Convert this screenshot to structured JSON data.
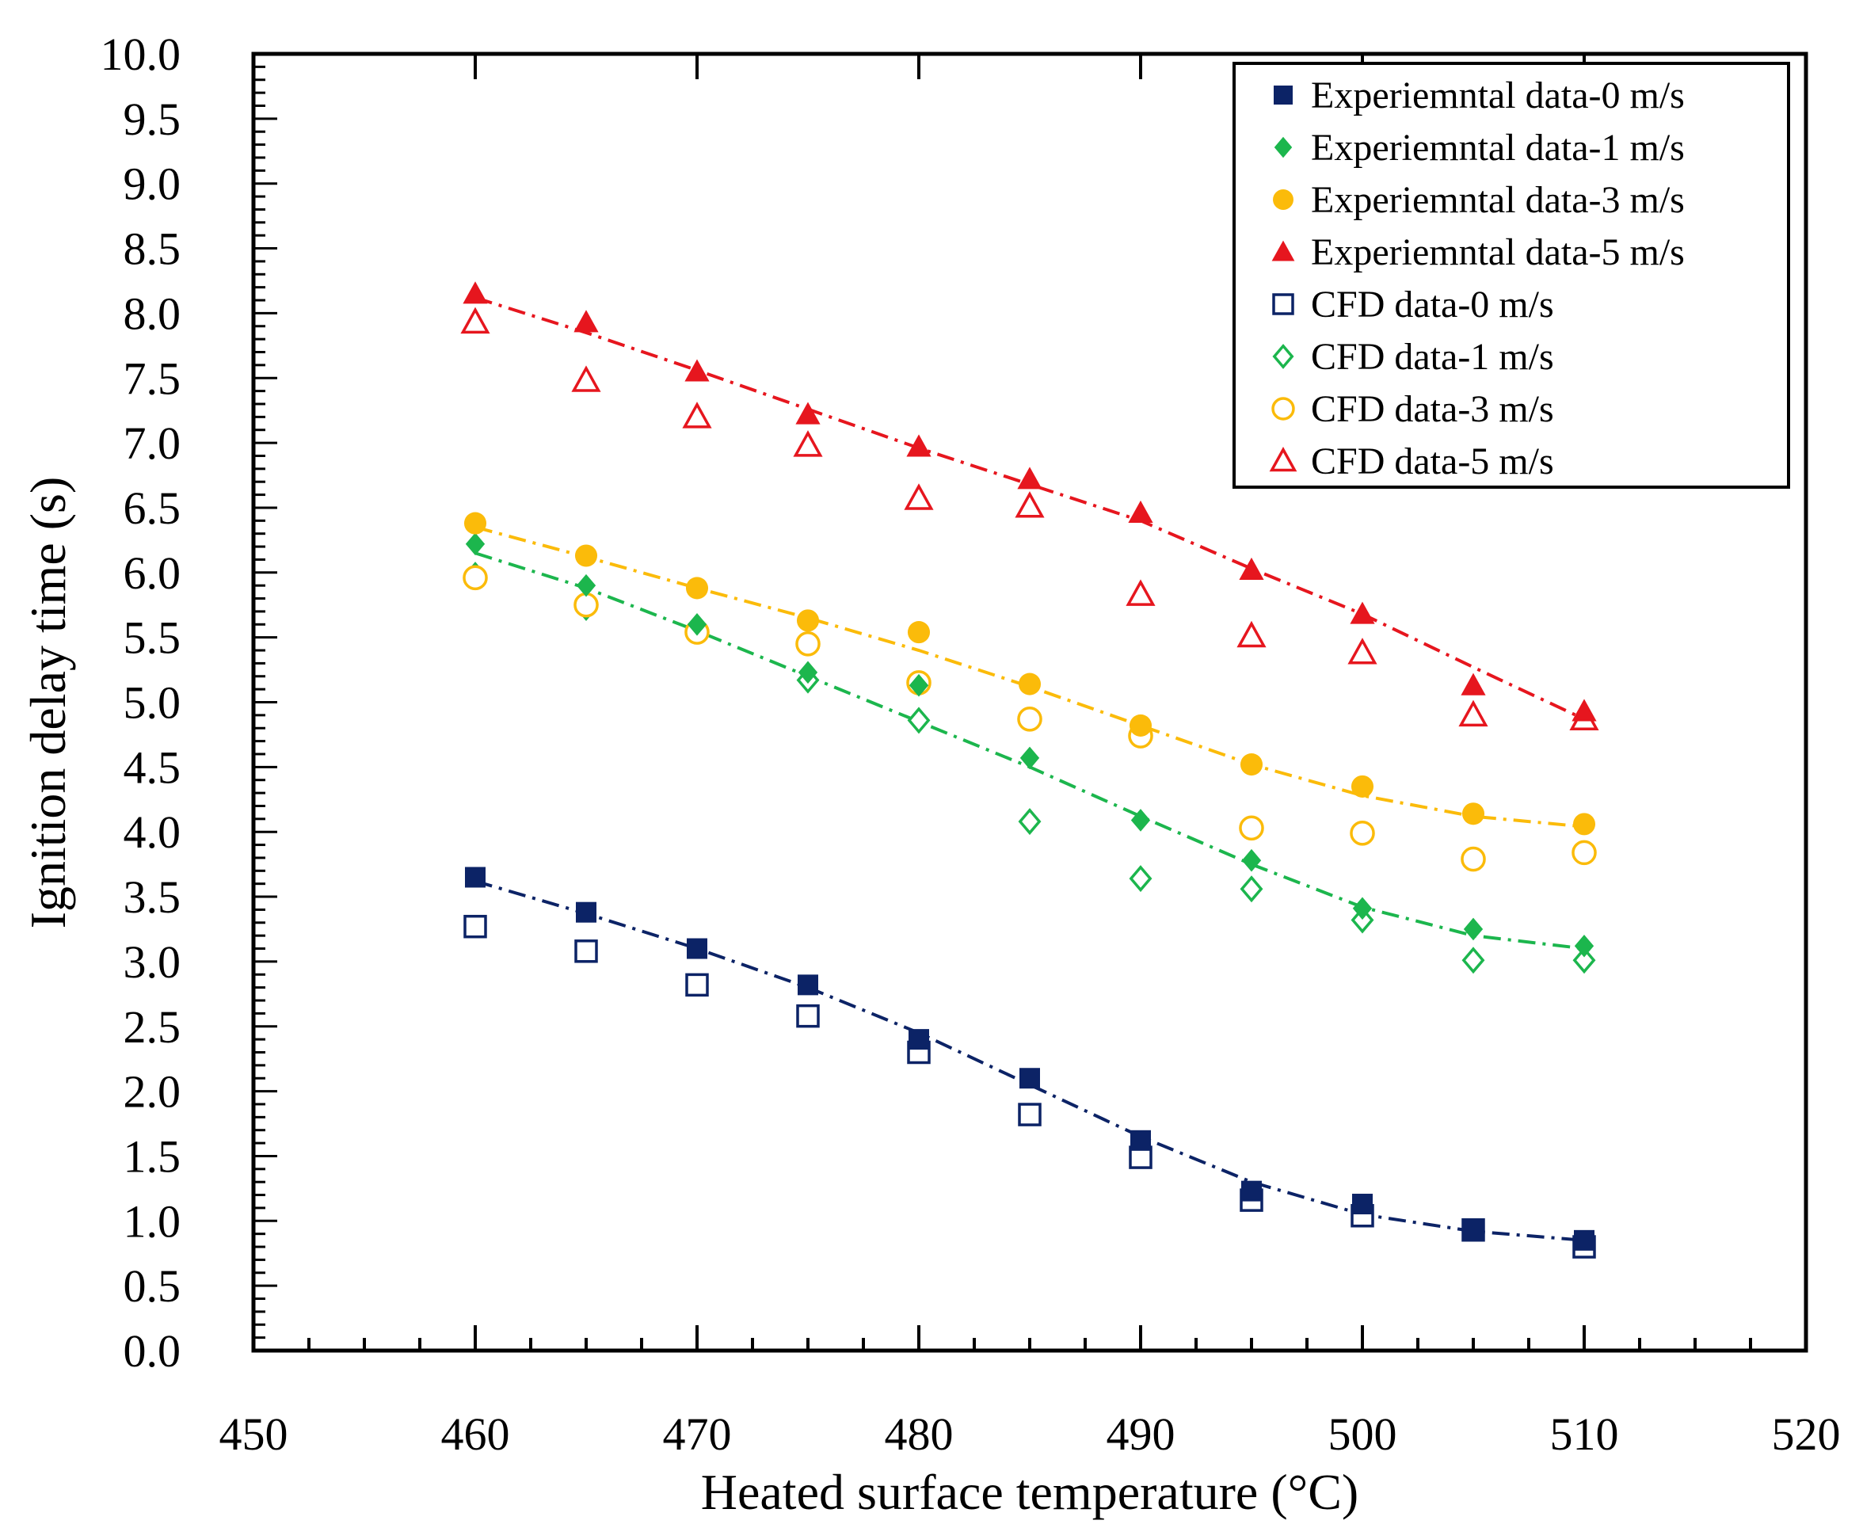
{
  "chart_data": {
    "type": "scatter",
    "title": "",
    "xlabel": "Heated surface temperature (°C)",
    "ylabel": "Ignition delay time (s)",
    "xlim": [
      450,
      520
    ],
    "ylim": [
      0,
      10
    ],
    "x_ticks": [
      "450",
      "460",
      "470",
      "480",
      "490",
      "500",
      "510",
      "520"
    ],
    "y_ticks": [
      "0.0",
      "0.5",
      "1.0",
      "1.5",
      "2.0",
      "2.5",
      "3.0",
      "3.5",
      "4.0",
      "4.5",
      "5.0",
      "5.5",
      "6.0",
      "6.5",
      "7.0",
      "7.5",
      "8.0",
      "8.5",
      "9.0",
      "9.5",
      "10.0"
    ],
    "legend_position": "top-right",
    "x": [
      460,
      465,
      470,
      475,
      480,
      485,
      490,
      495,
      500,
      505,
      510
    ],
    "series": [
      {
        "name": "Experiemntal data-0 m/s",
        "marker": "square",
        "filled": true,
        "color": "#0c2366",
        "values": [
          3.65,
          3.38,
          3.1,
          2.82,
          2.4,
          2.1,
          1.62,
          1.23,
          1.13,
          0.93,
          0.85
        ],
        "trend": [
          3.62,
          3.37,
          3.1,
          2.8,
          2.45,
          2.05,
          1.65,
          1.3,
          1.05,
          0.92,
          0.85
        ]
      },
      {
        "name": "Experiemntal data-1 m/s",
        "marker": "diamond",
        "filled": true,
        "color": "#1cb64d",
        "values": [
          6.22,
          5.9,
          5.6,
          5.23,
          5.13,
          4.57,
          4.09,
          3.78,
          3.41,
          3.25,
          3.12
        ],
        "trend": [
          6.15,
          5.88,
          5.55,
          5.2,
          4.85,
          4.5,
          4.12,
          3.75,
          3.42,
          3.2,
          3.1
        ]
      },
      {
        "name": "Experiemntal data-3 m/s",
        "marker": "circle",
        "filled": true,
        "color": "#fbbb0a",
        "values": [
          6.38,
          6.13,
          5.88,
          5.63,
          5.54,
          5.14,
          4.82,
          4.52,
          4.35,
          4.14,
          4.06
        ],
        "trend": [
          6.35,
          6.12,
          5.88,
          5.65,
          5.4,
          5.12,
          4.82,
          4.52,
          4.28,
          4.12,
          4.04
        ]
      },
      {
        "name": "Experiemntal data-5 m/s",
        "marker": "triangle",
        "filled": true,
        "color": "#e6161e",
        "values": [
          8.15,
          7.93,
          7.55,
          7.22,
          6.97,
          6.72,
          6.46,
          6.02,
          5.68,
          5.13,
          4.93
        ],
        "trend": [
          8.12,
          7.85,
          7.56,
          7.26,
          6.96,
          6.68,
          6.4,
          6.03,
          5.68,
          5.27,
          4.87
        ]
      },
      {
        "name": "CFD data-0 m/s",
        "marker": "square",
        "filled": false,
        "color": "#0c2366",
        "values": [
          3.27,
          3.08,
          2.82,
          2.58,
          2.3,
          1.82,
          1.49,
          1.16,
          1.04,
          0.93,
          0.8
        ]
      },
      {
        "name": "CFD data-1 m/s",
        "marker": "diamond",
        "filled": false,
        "color": "#1cb64d",
        "values": [
          5.98,
          5.73,
          5.55,
          5.17,
          4.86,
          4.08,
          3.64,
          3.56,
          3.32,
          3.01,
          3.01
        ]
      },
      {
        "name": "CFD data-3 m/s",
        "marker": "circle",
        "filled": false,
        "color": "#fbbb0a",
        "values": [
          5.96,
          5.75,
          5.54,
          5.45,
          5.15,
          4.87,
          4.74,
          4.03,
          3.99,
          3.79,
          3.84
        ]
      },
      {
        "name": "CFD data-5 m/s",
        "marker": "triangle",
        "filled": false,
        "color": "#e6161e",
        "values": [
          7.93,
          7.48,
          7.2,
          6.98,
          6.57,
          6.51,
          5.83,
          5.51,
          5.38,
          4.9,
          4.87
        ]
      }
    ]
  }
}
